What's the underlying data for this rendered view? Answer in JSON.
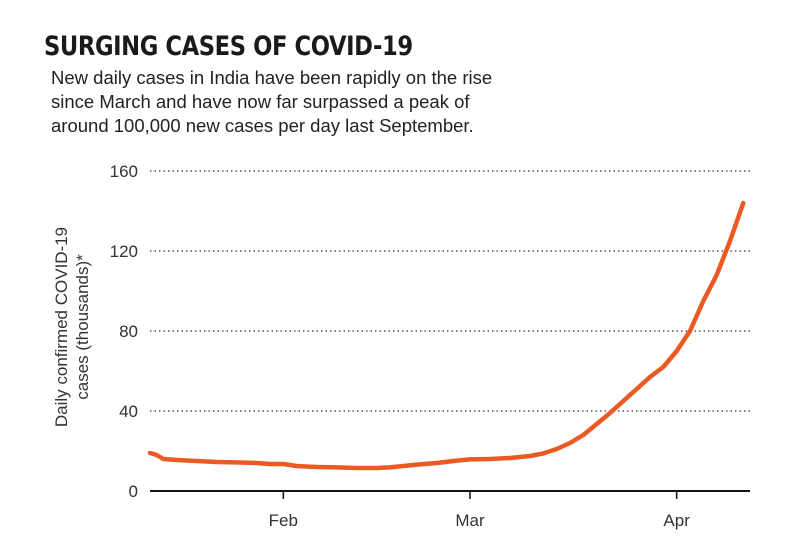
{
  "header": {
    "title": "SURGING CASES OF COVID-19",
    "subtitle_lines": [
      "New daily cases in India have been rapidly on the rise",
      "since March and have now far surpassed a peak of",
      "around 100,000 new cases per day last September."
    ]
  },
  "colors": {
    "line": "#ec5a24",
    "grid": "#555555",
    "axis": "#111111",
    "text": "#333333"
  },
  "chart_data": {
    "type": "line",
    "title": "SURGING CASES OF COVID-19",
    "subtitle": "New daily cases in India have been rapidly on the rise since March and have now far surpassed a peak of around 100,000 new cases per day last September.",
    "ylabel_lines": [
      "Daily confirmed COVID-19",
      "cases (thousands)*"
    ],
    "xlabel": "",
    "ylim": [
      0,
      160
    ],
    "yticks": [
      0,
      40,
      80,
      120,
      160
    ],
    "x_date_range": [
      "2021-01-12",
      "2021-04-12"
    ],
    "xticks": [
      {
        "date": "2021-02-01",
        "label": "Feb"
      },
      {
        "date": "2021-03-01",
        "label": "Mar"
      },
      {
        "date": "2021-04-01",
        "label": "Apr"
      }
    ],
    "grid": "horizontal-dotted",
    "series": [
      {
        "values": [
          {
            "date": "2021-01-12",
            "value": 19
          },
          {
            "date": "2021-01-13",
            "value": 18
          },
          {
            "date": "2021-01-14",
            "value": 16
          },
          {
            "date": "2021-01-16",
            "value": 15.5
          },
          {
            "date": "2021-01-19",
            "value": 15
          },
          {
            "date": "2021-01-22",
            "value": 14.5
          },
          {
            "date": "2021-01-25",
            "value": 14.3
          },
          {
            "date": "2021-01-28",
            "value": 14
          },
          {
            "date": "2021-01-30",
            "value": 13.5
          },
          {
            "date": "2021-02-01",
            "value": 13.5
          },
          {
            "date": "2021-02-03",
            "value": 12.5
          },
          {
            "date": "2021-02-06",
            "value": 12
          },
          {
            "date": "2021-02-09",
            "value": 11.8
          },
          {
            "date": "2021-02-12",
            "value": 11.5
          },
          {
            "date": "2021-02-15",
            "value": 11.5
          },
          {
            "date": "2021-02-17",
            "value": 11.8
          },
          {
            "date": "2021-02-19",
            "value": 12.5
          },
          {
            "date": "2021-02-21",
            "value": 13.2
          },
          {
            "date": "2021-02-24",
            "value": 14
          },
          {
            "date": "2021-02-27",
            "value": 15.2
          },
          {
            "date": "2021-03-01",
            "value": 15.8
          },
          {
            "date": "2021-03-04",
            "value": 16
          },
          {
            "date": "2021-03-07",
            "value": 16.5
          },
          {
            "date": "2021-03-10",
            "value": 17.5
          },
          {
            "date": "2021-03-12",
            "value": 18.8
          },
          {
            "date": "2021-03-14",
            "value": 21
          },
          {
            "date": "2021-03-16",
            "value": 24
          },
          {
            "date": "2021-03-18",
            "value": 28
          },
          {
            "date": "2021-03-20",
            "value": 33.5
          },
          {
            "date": "2021-03-22",
            "value": 39
          },
          {
            "date": "2021-03-24",
            "value": 45
          },
          {
            "date": "2021-03-26",
            "value": 51
          },
          {
            "date": "2021-03-28",
            "value": 57
          },
          {
            "date": "2021-03-30",
            "value": 62
          },
          {
            "date": "2021-04-01",
            "value": 70
          },
          {
            "date": "2021-04-03",
            "value": 80
          },
          {
            "date": "2021-04-05",
            "value": 95
          },
          {
            "date": "2021-04-07",
            "value": 108
          },
          {
            "date": "2021-04-09",
            "value": 125
          },
          {
            "date": "2021-04-11",
            "value": 144
          }
        ]
      }
    ]
  }
}
